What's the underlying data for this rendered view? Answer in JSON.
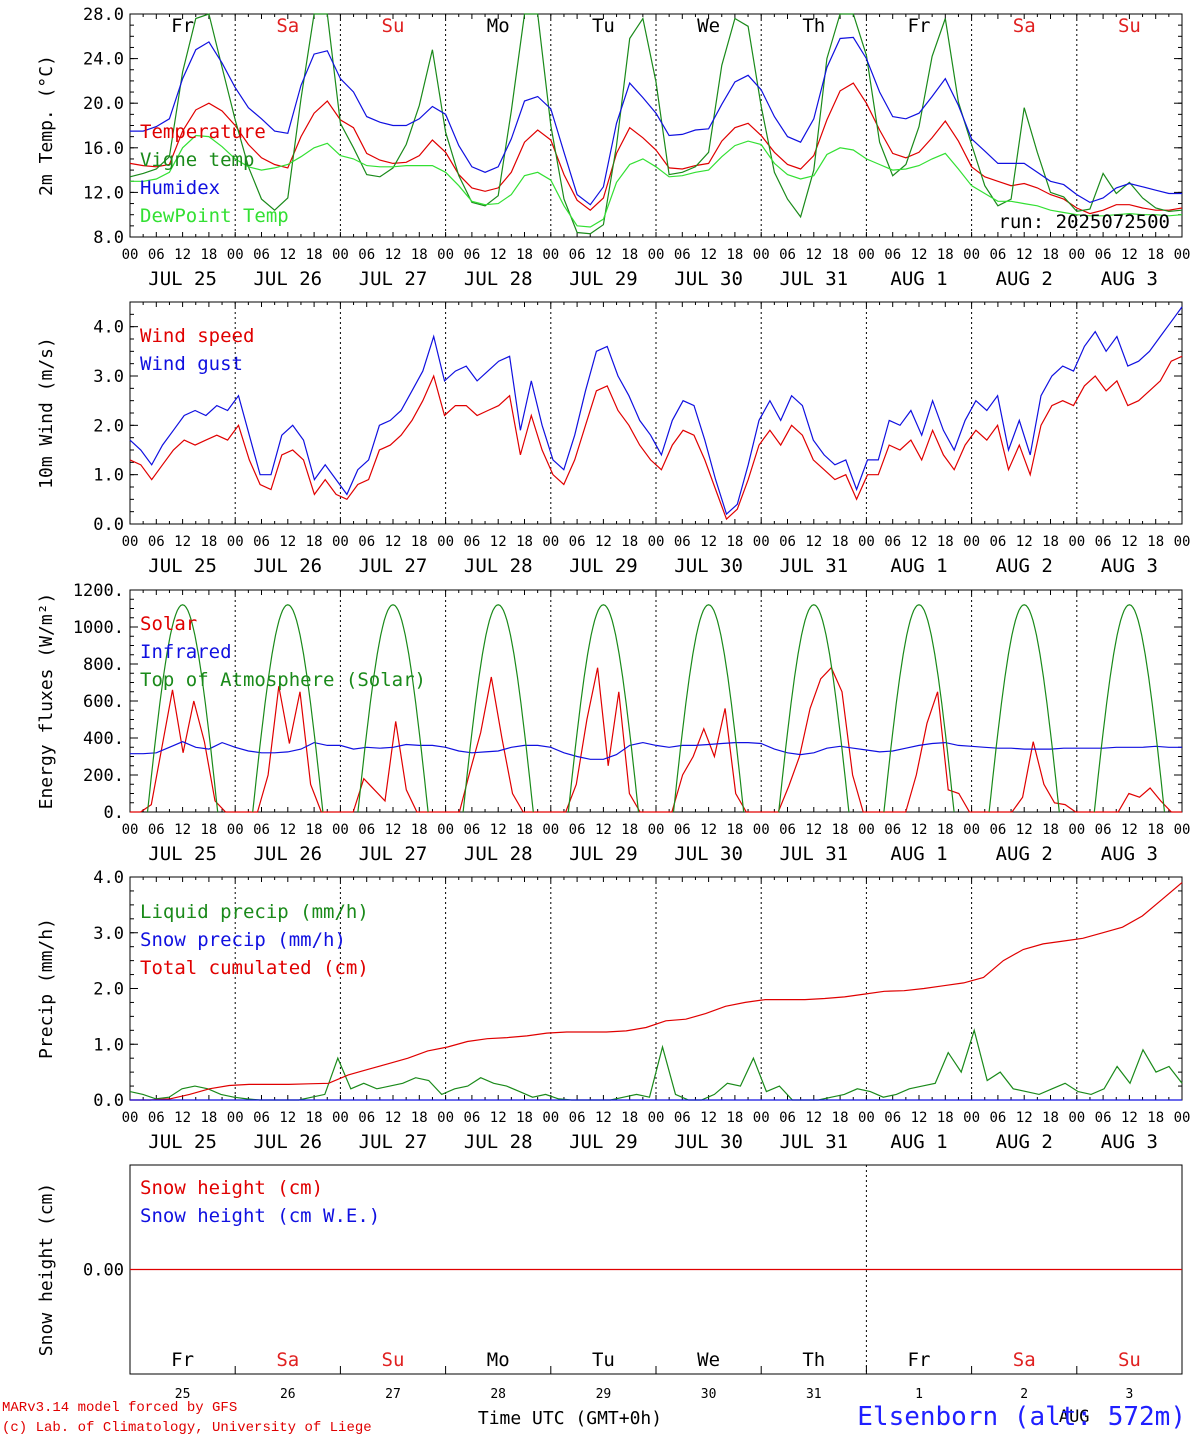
{
  "footer": {
    "credit_line1": "MARv3.14 model forced by GFS",
    "credit_line2": "(c) Lab. of Climatology, University of Liege",
    "time_axis_label": "Time UTC (GMT+0h)",
    "station": "Elsenborn (alt: 572m)"
  },
  "colors": {
    "red": "#e00000",
    "blue": "#1010e0",
    "green": "#1a8a1a",
    "lightgreen": "#33e033",
    "sat_sun": "#e02020"
  },
  "days": [
    {
      "abbr": "Fr",
      "date": "JUL 25",
      "num": "25",
      "weekend": false
    },
    {
      "abbr": "Sa",
      "date": "JUL 26",
      "num": "26",
      "weekend": true
    },
    {
      "abbr": "Su",
      "date": "JUL 27",
      "num": "27",
      "weekend": true
    },
    {
      "abbr": "Mo",
      "date": "JUL 28",
      "num": "28",
      "weekend": false
    },
    {
      "abbr": "Tu",
      "date": "JUL 29",
      "num": "29",
      "weekend": false
    },
    {
      "abbr": "We",
      "date": "JUL 30",
      "num": "30",
      "weekend": false
    },
    {
      "abbr": "Th",
      "date": "JUL 31",
      "num": "31",
      "weekend": false
    },
    {
      "abbr": "Fr",
      "date": "AUG  1",
      "num": "1",
      "weekend": false
    },
    {
      "abbr": "Sa",
      "date": "AUG  2",
      "num": "2",
      "weekend": true
    },
    {
      "abbr": "Su",
      "date": "AUG  3",
      "num": "3",
      "weekend": true
    }
  ],
  "hour_ticks": [
    "00",
    "06",
    "12",
    "18"
  ],
  "last_tick": "00",
  "month_label_bottom": "AUG",
  "chart_data": [
    {
      "type": "line",
      "ylabel": "2m Temp. (°C)",
      "ylim": [
        8,
        28
      ],
      "yticks": [
        "8.0",
        "12.0",
        "16.0",
        "20.0",
        "24.0",
        "28.0"
      ],
      "ytick_values": [
        8,
        12,
        16,
        20,
        24,
        28
      ],
      "run_label": "run: 2025072500",
      "series": [
        {
          "name": "Temperature",
          "color": "red",
          "values": [
            14.6,
            14.4,
            14.3,
            14.5,
            17.5,
            19.4,
            20.0,
            19.3,
            18.0,
            16.3,
            15.1,
            14.5,
            14.2,
            17.0,
            19.1,
            20.2,
            18.5,
            17.8,
            15.5,
            14.9,
            14.6,
            14.7,
            15.3,
            16.7,
            15.6,
            13.6,
            12.4,
            12.1,
            12.4,
            13.8,
            16.5,
            17.6,
            16.7,
            13.6,
            11.3,
            10.4,
            11.5,
            15.5,
            17.8,
            16.9,
            15.8,
            14.2,
            14.1,
            14.4,
            14.6,
            16.6,
            17.8,
            18.2,
            17.1,
            15.6,
            14.5,
            14.1,
            15.3,
            18.5,
            21.1,
            21.8,
            20.0,
            17.6,
            15.5,
            15.1,
            15.6,
            16.9,
            18.4,
            16.6,
            14.3,
            13.4,
            13.0,
            12.6,
            12.8,
            12.4,
            11.8,
            11.4,
            10.6,
            10.1,
            10.4,
            10.9,
            10.9,
            10.6,
            10.4,
            10.4,
            10.6
          ]
        },
        {
          "name": "Vigne temp",
          "color": "green",
          "values": [
            13.4,
            13.7,
            14.1,
            15.2,
            22.8,
            27.6,
            28.0,
            23.2,
            18.5,
            14.3,
            11.4,
            10.4,
            11.5,
            20.4,
            28.0,
            28.0,
            18.2,
            16.0,
            13.6,
            13.4,
            14.2,
            16.3,
            19.8,
            24.8,
            17.4,
            13.5,
            11.1,
            10.8,
            11.7,
            19.3,
            28.0,
            28.0,
            18.0,
            11.4,
            8.4,
            8.3,
            9.1,
            16.2,
            25.8,
            27.6,
            21.9,
            13.6,
            13.8,
            14.3,
            15.6,
            23.4,
            27.6,
            26.9,
            19.7,
            13.8,
            11.4,
            9.8,
            14.0,
            24.0,
            28.0,
            28.0,
            24.3,
            16.5,
            13.5,
            14.5,
            17.9,
            24.2,
            27.6,
            20.1,
            16.3,
            12.6,
            10.8,
            11.4,
            19.6,
            15.6,
            12.0,
            11.6,
            10.3,
            10.5,
            13.7,
            11.9,
            12.9,
            11.5,
            10.6,
            10.3,
            10.4
          ]
        },
        {
          "name": "Humidex",
          "color": "blue",
          "values": [
            17.5,
            17.5,
            17.9,
            18.6,
            22.2,
            24.8,
            25.5,
            23.6,
            21.4,
            19.6,
            18.6,
            17.5,
            17.3,
            21.6,
            24.4,
            24.7,
            22.2,
            21.0,
            18.8,
            18.3,
            18.0,
            18.0,
            18.6,
            19.7,
            19.0,
            16.2,
            14.3,
            13.8,
            14.3,
            16.8,
            20.2,
            20.6,
            19.5,
            15.6,
            11.8,
            10.9,
            12.5,
            18.2,
            21.8,
            20.5,
            19.1,
            17.1,
            17.2,
            17.6,
            17.7,
            19.9,
            21.9,
            22.5,
            21.2,
            18.8,
            17.0,
            16.5,
            18.6,
            23.2,
            25.8,
            25.9,
            24.0,
            21.0,
            18.8,
            18.6,
            19.1,
            20.6,
            22.2,
            19.8,
            16.8,
            15.7,
            14.6,
            14.6,
            14.6,
            13.8,
            13.0,
            12.7,
            11.8,
            11.1,
            11.5,
            12.4,
            12.8,
            12.5,
            12.2,
            11.9,
            11.9
          ]
        },
        {
          "name": "DewPoint Temp",
          "color": "lightgreen",
          "values": [
            13.0,
            13.0,
            13.2,
            13.8,
            16.0,
            17.1,
            17.0,
            16.1,
            15.0,
            14.3,
            14.0,
            14.2,
            14.5,
            15.2,
            16.0,
            16.4,
            15.3,
            15.0,
            14.4,
            14.3,
            14.3,
            14.4,
            14.4,
            14.4,
            13.8,
            12.6,
            11.2,
            10.9,
            11.0,
            11.8,
            13.5,
            13.8,
            13.1,
            10.8,
            9.0,
            8.9,
            9.6,
            12.9,
            14.5,
            15.0,
            14.3,
            13.4,
            13.5,
            13.8,
            14.0,
            15.2,
            16.2,
            16.6,
            16.3,
            14.6,
            13.6,
            13.2,
            13.5,
            15.4,
            16.0,
            15.8,
            15.0,
            14.5,
            14.0,
            14.1,
            14.4,
            15.0,
            15.5,
            14.1,
            12.6,
            11.9,
            11.2,
            11.2,
            11.0,
            10.8,
            10.4,
            10.2,
            10.0,
            9.9,
            9.9,
            10.0,
            10.1,
            10.0,
            10.0,
            9.9,
            10.0
          ]
        }
      ]
    },
    {
      "type": "line",
      "ylabel": "10m Wind (m/s)",
      "ylim": [
        0,
        4.5
      ],
      "yticks": [
        "0.0",
        "1.0",
        "2.0",
        "3.0",
        "4.0"
      ],
      "ytick_values": [
        0,
        1,
        2,
        3,
        4
      ],
      "series": [
        {
          "name": "Wind speed",
          "color": "red",
          "values": [
            1.3,
            1.2,
            0.9,
            1.2,
            1.5,
            1.7,
            1.6,
            1.7,
            1.8,
            1.7,
            2.0,
            1.3,
            0.8,
            0.7,
            1.4,
            1.5,
            1.3,
            0.6,
            0.9,
            0.6,
            0.5,
            0.8,
            0.9,
            1.5,
            1.6,
            1.8,
            2.1,
            2.5,
            3.0,
            2.2,
            2.4,
            2.4,
            2.2,
            2.3,
            2.4,
            2.6,
            1.4,
            2.2,
            1.5,
            1.0,
            0.8,
            1.3,
            2.0,
            2.7,
            2.8,
            2.3,
            2.0,
            1.6,
            1.3,
            1.1,
            1.6,
            1.9,
            1.8,
            1.3,
            0.7,
            0.1,
            0.3,
            0.9,
            1.6,
            1.9,
            1.6,
            2.0,
            1.8,
            1.3,
            1.1,
            0.9,
            1.0,
            0.5,
            1.0,
            1.0,
            1.6,
            1.5,
            1.7,
            1.3,
            1.9,
            1.4,
            1.1,
            1.6,
            1.9,
            1.7,
            2.0,
            1.1,
            1.6,
            1.0,
            2.0,
            2.4,
            2.5,
            2.4,
            2.8,
            3.0,
            2.7,
            2.9,
            2.4,
            2.5,
            2.7,
            2.9,
            3.3,
            3.4
          ]
        },
        {
          "name": "Wind gust",
          "color": "blue",
          "values": [
            1.7,
            1.5,
            1.2,
            1.6,
            1.9,
            2.2,
            2.3,
            2.2,
            2.4,
            2.3,
            2.6,
            1.8,
            1.0,
            1.0,
            1.8,
            2.0,
            1.7,
            0.9,
            1.2,
            0.9,
            0.6,
            1.1,
            1.3,
            2.0,
            2.1,
            2.3,
            2.7,
            3.1,
            3.8,
            2.9,
            3.1,
            3.2,
            2.9,
            3.1,
            3.3,
            3.4,
            1.9,
            2.9,
            2.0,
            1.3,
            1.1,
            1.8,
            2.7,
            3.5,
            3.6,
            3.0,
            2.6,
            2.1,
            1.8,
            1.4,
            2.1,
            2.5,
            2.4,
            1.7,
            0.9,
            0.2,
            0.4,
            1.2,
            2.1,
            2.5,
            2.1,
            2.6,
            2.4,
            1.7,
            1.4,
            1.2,
            1.3,
            0.7,
            1.3,
            1.3,
            2.1,
            2.0,
            2.3,
            1.8,
            2.5,
            1.9,
            1.5,
            2.1,
            2.5,
            2.3,
            2.6,
            1.5,
            2.1,
            1.4,
            2.6,
            3.0,
            3.2,
            3.1,
            3.6,
            3.9,
            3.5,
            3.8,
            3.2,
            3.3,
            3.5,
            3.8,
            4.1,
            4.4
          ]
        }
      ]
    },
    {
      "type": "line",
      "ylabel": "Energy fluxes (W/m²)",
      "ylim": [
        0,
        1200
      ],
      "yticks": [
        "0.",
        "200.",
        "400.",
        "600.",
        "800.",
        "1000.",
        "1200."
      ],
      "ytick_values": [
        0,
        200,
        400,
        600,
        800,
        1000,
        1200
      ],
      "series": [
        {
          "name": "Solar",
          "color": "red",
          "values": [
            0,
            0,
            40,
            350,
            660,
            320,
            600,
            380,
            60,
            0,
            0,
            0,
            0,
            200,
            680,
            370,
            650,
            150,
            0,
            0,
            0,
            0,
            180,
            120,
            60,
            490,
            120,
            0,
            0,
            0,
            0,
            0,
            220,
            430,
            730,
            400,
            100,
            0,
            0,
            0,
            0,
            0,
            150,
            500,
            780,
            250,
            650,
            100,
            0,
            0,
            0,
            0,
            200,
            300,
            450,
            300,
            560,
            100,
            0,
            0,
            0,
            0,
            140,
            300,
            560,
            720,
            780,
            650,
            200,
            0,
            0,
            0,
            0,
            0,
            200,
            480,
            650,
            120,
            100,
            0,
            0,
            0,
            0,
            0,
            80,
            380,
            150,
            50,
            40,
            0,
            0,
            0,
            0,
            0,
            100,
            80,
            130,
            60,
            0,
            0
          ]
        },
        {
          "name": "Infrared",
          "color": "blue",
          "values": [
            315,
            315,
            320,
            350,
            380,
            350,
            340,
            375,
            350,
            330,
            320,
            320,
            325,
            340,
            375,
            360,
            360,
            340,
            350,
            345,
            350,
            365,
            360,
            360,
            350,
            330,
            320,
            325,
            330,
            350,
            360,
            360,
            350,
            320,
            300,
            285,
            285,
            310,
            360,
            375,
            360,
            350,
            360,
            360,
            365,
            370,
            375,
            375,
            370,
            340,
            320,
            310,
            320,
            345,
            355,
            345,
            335,
            325,
            330,
            345,
            360,
            370,
            375,
            360,
            355,
            350,
            345,
            345,
            340,
            340,
            340,
            345,
            345,
            345,
            345,
            350,
            350,
            350,
            355,
            350,
            350
          ]
        },
        {
          "name": "Top of Atmosphere (Solar)",
          "color": "green",
          "values": []
        }
      ]
    },
    {
      "type": "line",
      "ylabel": "Precip (mm/h)",
      "ylim": [
        0,
        4
      ],
      "yticks": [
        "0.0",
        "1.0",
        "2.0",
        "3.0",
        "4.0"
      ],
      "ytick_values": [
        0,
        1,
        2,
        3,
        4
      ],
      "series": [
        {
          "name": "Liquid precip (mm/h)",
          "color": "green",
          "values": [
            0.15,
            0.1,
            0.02,
            0.05,
            0.2,
            0.25,
            0.2,
            0.1,
            0.05,
            0.02,
            0,
            0,
            0,
            0,
            0.05,
            0.1,
            0.75,
            0.2,
            0.3,
            0.2,
            0.25,
            0.3,
            0.4,
            0.35,
            0.1,
            0.2,
            0.25,
            0.4,
            0.3,
            0.25,
            0.15,
            0.05,
            0.1,
            0.02,
            0,
            0,
            0,
            0,
            0.05,
            0.1,
            0.05,
            0.95,
            0.1,
            0,
            0,
            0.1,
            0.3,
            0.25,
            0.75,
            0.15,
            0.25,
            0,
            0,
            0,
            0.05,
            0.1,
            0.2,
            0.15,
            0.05,
            0.1,
            0.2,
            0.25,
            0.3,
            0.85,
            0.5,
            1.25,
            0.35,
            0.5,
            0.2,
            0.15,
            0.1,
            0.2,
            0.3,
            0.15,
            0.1,
            0.2,
            0.6,
            0.3,
            0.9,
            0.5,
            0.6,
            0.3
          ]
        },
        {
          "name": "Snow precip (mm/h)",
          "color": "blue",
          "values": []
        },
        {
          "name": "Total cumulated (cm)",
          "color": "red",
          "values": [
            0,
            0,
            0.02,
            0.1,
            0.2,
            0.26,
            0.28,
            0.28,
            0.28,
            0.29,
            0.3,
            0.45,
            0.55,
            0.65,
            0.75,
            0.88,
            0.95,
            1.05,
            1.1,
            1.12,
            1.15,
            1.2,
            1.22,
            1.22,
            1.22,
            1.24,
            1.3,
            1.42,
            1.45,
            1.55,
            1.68,
            1.75,
            1.8,
            1.8,
            1.8,
            1.82,
            1.85,
            1.9,
            1.95,
            1.96,
            2.0,
            2.05,
            2.1,
            2.2,
            2.5,
            2.7,
            2.8,
            2.85,
            2.9,
            3.0,
            3.1,
            3.3,
            3.6,
            3.9
          ]
        }
      ]
    },
    {
      "type": "line",
      "ylabel": "Snow height (cm)",
      "ylim": [
        -1,
        1
      ],
      "yticks": [
        "0.00"
      ],
      "ytick_values": [
        0
      ],
      "series": [
        {
          "name": "Snow height (cm)",
          "color": "red",
          "values": [
            0,
            0
          ]
        },
        {
          "name": "Snow height (cm W.E.)",
          "color": "blue",
          "values": []
        }
      ]
    }
  ]
}
